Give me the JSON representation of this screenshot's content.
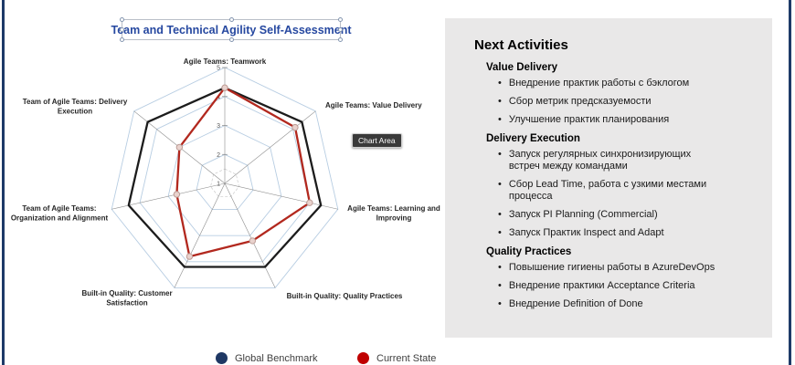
{
  "page": {
    "background": "#FFFFFF",
    "side_stripe_color": "#1E3A68"
  },
  "chart": {
    "title": "Team and Technical Agility Self-Assessment",
    "title_color": "#2648A0",
    "tooltip": "Chart Area",
    "legend": [
      {
        "label": "Global Benchmark",
        "color": "#1F3864"
      },
      {
        "label": "Current State",
        "color": "#C00000"
      }
    ]
  },
  "chart_data": {
    "type": "radar",
    "title": "Team and Technical Agility Self-Assessment",
    "axis_min": 1,
    "axis_max": 5,
    "tick_labels": [
      "1",
      "2",
      "3",
      "4",
      "5"
    ],
    "grid": true,
    "gridline_color": "#B7CDE2",
    "spoke_color": "#8C8C8C",
    "legend_position": "bottom",
    "categories": [
      "Agile Teams: Teamwork",
      "Agile Teams: Value Delivery",
      "Agile Teams: Learning and Improving",
      "Built-in Quality: Quality Practices",
      "Built-in Quality: Customer Satisfaction",
      "Team of Agile Teams: Organization and Alignment",
      "Team of Agile Teams: Delivery Execution"
    ],
    "category_lines": [
      [
        "Agile Teams: Teamwork"
      ],
      [
        "Agile Teams: Value Delivery"
      ],
      [
        "Agile Teams: Learning and",
        "Improving"
      ],
      [
        "Built-in Quality: Quality Practices"
      ],
      [
        "Built-in Quality: Customer",
        "Satisfaction"
      ],
      [
        "Team of Agile Teams:",
        "Organization and Alignment"
      ],
      [
        "Team of Agile Teams: Delivery",
        "Execution"
      ]
    ],
    "series": [
      {
        "name": "Global Benchmark",
        "color": "#1C1C1C",
        "marker": false,
        "values": [
          4.3,
          4.4,
          4.4,
          4.2,
          4.2,
          4.4,
          4.4
        ]
      },
      {
        "name": "Current State",
        "color": "#B2281E",
        "marker": true,
        "values": [
          4.3,
          4.1,
          4.0,
          3.2,
          3.8,
          2.7,
          3.0
        ]
      }
    ]
  },
  "panel": {
    "title": "Next Activities",
    "sections": [
      {
        "heading": "Value Delivery",
        "items": [
          "Внедрение практик работы с бэклогом",
          "Сбор метрик предсказуемости",
          "Улучшение практик планирования"
        ]
      },
      {
        "heading": "Delivery Execution",
        "items": [
          "Запуск регулярных синхронизирующих встреч между командами",
          "Сбор Lead Time, работа с узкими местами процесса",
          "Запуск PI Planning (Commercial)",
          "Запуск Практик Inspect and Adapt"
        ]
      },
      {
        "heading": "Quality Practices",
        "items": [
          "Повышение гигиены работы в AzureDevOps",
          "Внедрение практики Acceptance Criteria",
          "Внедрение Definition of Done"
        ]
      }
    ]
  }
}
